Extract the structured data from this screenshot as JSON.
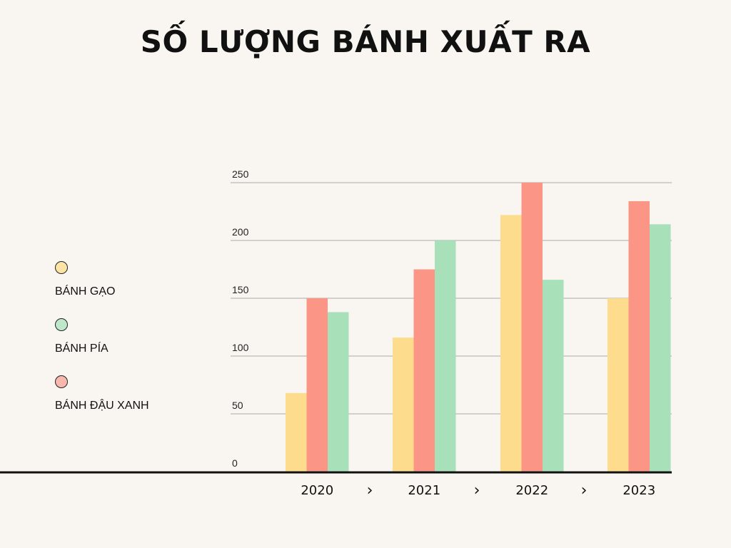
{
  "chart_data": {
    "type": "bar",
    "title": "SỐ LƯỢNG BÁNH XUẤT RA",
    "categories": [
      "2020",
      "2021",
      "2022",
      "2023"
    ],
    "category_separator": "›",
    "series": [
      {
        "name": "BÁNH GẠO",
        "color": "#fddc8d",
        "values": [
          68,
          116,
          222,
          150
        ]
      },
      {
        "name": "BÁNH ĐẬU XANH",
        "color": "#fb9585",
        "values": [
          150,
          175,
          250,
          234
        ]
      },
      {
        "name": "BÁNH PÍA",
        "color": "#a7e0b9",
        "values": [
          138,
          200,
          166,
          214
        ]
      }
    ],
    "ylim": [
      0,
      250
    ],
    "yticks": [
      0,
      50,
      100,
      150,
      200,
      250
    ],
    "grid": true,
    "legend_position": "left"
  },
  "legend": [
    {
      "label": "BÁNH GẠO",
      "color": "#fce3a6"
    },
    {
      "label": "BÁNH PÍA",
      "color": "#bfe8cb"
    },
    {
      "label": "BÁNH ĐẬU XANH",
      "color": "#f8b8ae"
    }
  ]
}
